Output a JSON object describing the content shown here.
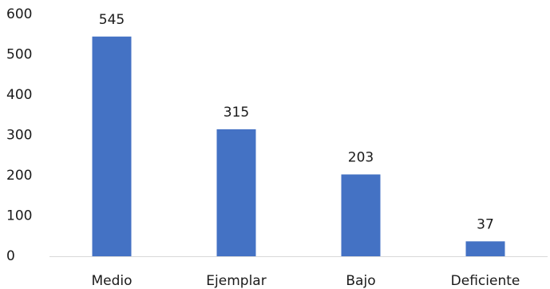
{
  "chart_data": {
    "type": "bar",
    "categories": [
      "Medio",
      "Ejemplar",
      "Bajo",
      "Deficiente"
    ],
    "values": [
      545,
      315,
      203,
      37
    ],
    "yticks": [
      0,
      100,
      200,
      300,
      400,
      500,
      600
    ],
    "ylim": [
      0,
      600
    ],
    "grid": false,
    "legend": "none",
    "bar_color": "#4472C4",
    "axis_color": "#d9d9d9"
  }
}
